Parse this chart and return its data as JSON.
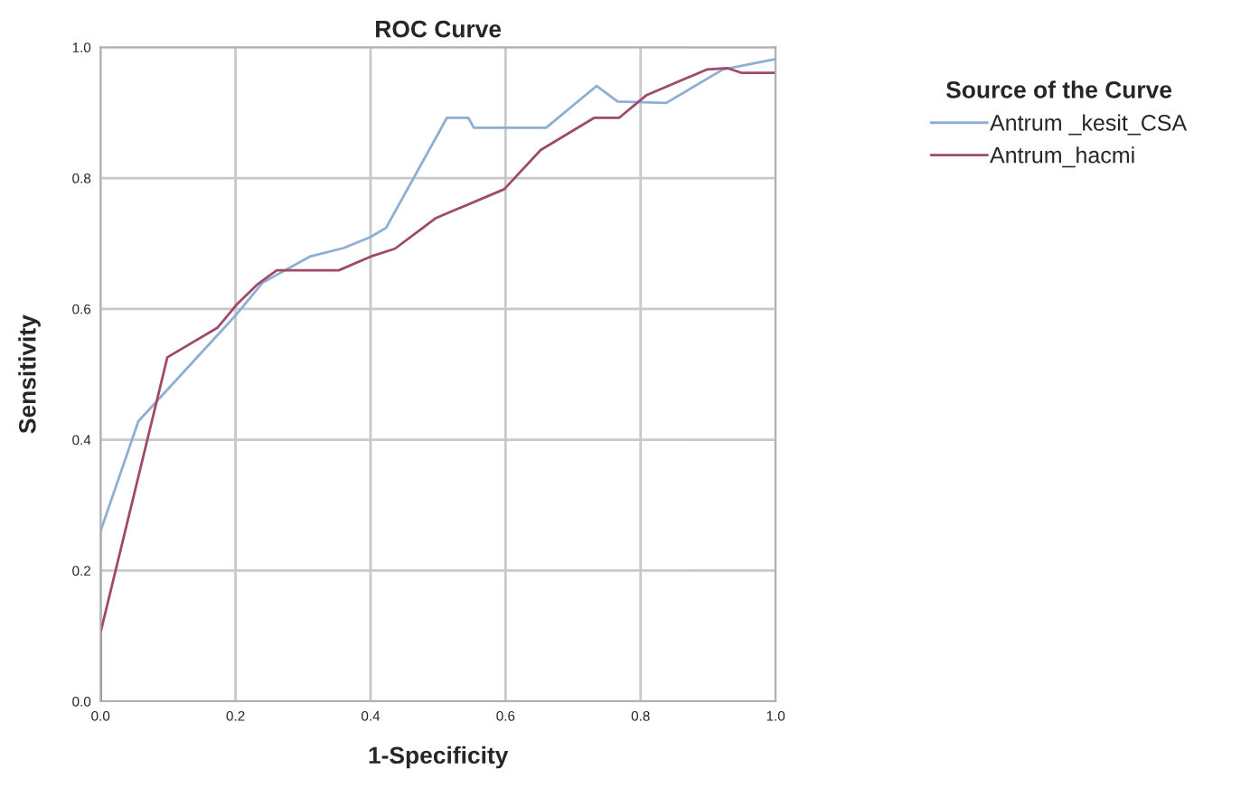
{
  "chart_data": {
    "type": "line",
    "title": "ROC Curve",
    "xlabel": "1-Specificity",
    "ylabel": "Sensitivity",
    "legend_title": "Source of the Curve",
    "legend": "right",
    "grid": true,
    "marker": "none",
    "line_style": "solid",
    "xlim": [
      0,
      1
    ],
    "ylim": [
      0,
      1
    ],
    "xticks": [
      {
        "value": 0,
        "label": "0.0"
      },
      0.2,
      0.4,
      0.6,
      0.8,
      {
        "value": 1,
        "label": "1.0"
      }
    ],
    "yticks": [
      {
        "value": 0,
        "label": "0.0"
      },
      0.2,
      0.4,
      0.6,
      0.8,
      {
        "value": 1,
        "label": "1.0"
      }
    ],
    "series": [
      {
        "name": "Antrum _kesit_CSA",
        "color": "#8faed6",
        "x": [
          0,
          0,
          0.056,
          0.2,
          0.24,
          0.31,
          0.36,
          0.4,
          0.423,
          0.513,
          0.545,
          0.553,
          0.66,
          0.735,
          0.766,
          0.838,
          0.922,
          1.0
        ],
        "values": [
          0,
          0.26,
          0.428,
          0.59,
          0.64,
          0.68,
          0.693,
          0.71,
          0.724,
          0.892,
          0.892,
          0.877,
          0.877,
          0.941,
          0.917,
          0.915,
          0.966,
          0.982
        ]
      },
      {
        "name": "Antrum_hacmi",
        "color": "#9e4a68",
        "x": [
          0,
          0,
          0.099,
          0.173,
          0.202,
          0.233,
          0.261,
          0.353,
          0.4,
          0.436,
          0.497,
          0.598,
          0.652,
          0.731,
          0.768,
          0.809,
          0.898,
          0.929,
          0.949,
          1.0
        ],
        "values": [
          0,
          0.105,
          0.526,
          0.571,
          0.607,
          0.638,
          0.659,
          0.659,
          0.68,
          0.692,
          0.739,
          0.783,
          0.843,
          0.892,
          0.892,
          0.927,
          0.966,
          0.968,
          0.961,
          0.961
        ]
      }
    ]
  }
}
